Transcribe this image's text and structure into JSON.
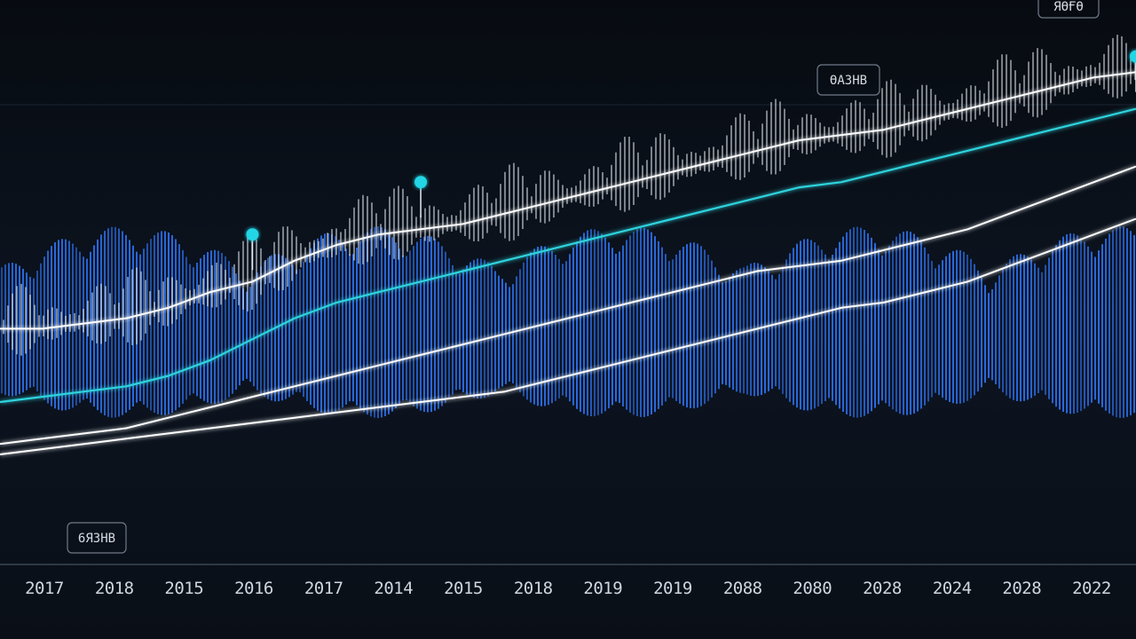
{
  "chart_data": {
    "type": "line",
    "title": "",
    "xlabel": "",
    "ylabel": "",
    "grid": false,
    "x_tick_labels": [
      "2017",
      "2018",
      "2015",
      "2016",
      "2017",
      "2014",
      "2015",
      "2018",
      "2019",
      "2019",
      "2088",
      "2080",
      "2028",
      "2024",
      "2028",
      "2022"
    ],
    "annotations": [
      "6ЯЗНВ",
      "ӨАЗНВ",
      "ЯӨҒӨ"
    ],
    "colors": {
      "background": "#0b1119",
      "spectrum_bars": "#2f78ff",
      "spike_bars": "#e6ecf2",
      "cyan_line": "#2fd3dd",
      "white_line": "#ffffff",
      "marker": "#22d6e6"
    },
    "series": [
      {
        "values": [
          44,
          44,
          45,
          46,
          48,
          51,
          53,
          57,
          60,
          62,
          63,
          64,
          66,
          68,
          70,
          72,
          74,
          76,
          78,
          80,
          81,
          82,
          84,
          86,
          88,
          90,
          92,
          93
        ]
      },
      {
        "values": [
          30,
          31,
          32,
          33,
          35,
          38,
          42,
          46,
          49,
          51,
          53,
          55,
          57,
          59,
          61,
          63,
          65,
          67,
          69,
          71,
          72,
          74,
          76,
          78,
          80,
          82,
          84,
          86
        ]
      },
      {
        "values": [
          22,
          23,
          24,
          25,
          27,
          29,
          31,
          33,
          35,
          37,
          39,
          41,
          43,
          45,
          47,
          49,
          51,
          53,
          55,
          56,
          57,
          59,
          61,
          63,
          66,
          69,
          72,
          75
        ]
      },
      {
        "values": [
          20,
          21,
          22,
          23,
          24,
          25,
          26,
          27,
          28,
          29,
          30,
          31,
          32,
          34,
          36,
          38,
          40,
          42,
          44,
          46,
          48,
          49,
          51,
          53,
          56,
          59,
          62,
          65
        ]
      }
    ],
    "markers": [
      {
        "x_index": 6,
        "y": 62
      },
      {
        "x_index": 10,
        "y": 72
      },
      {
        "x_index": 27,
        "y": 96
      }
    ]
  }
}
